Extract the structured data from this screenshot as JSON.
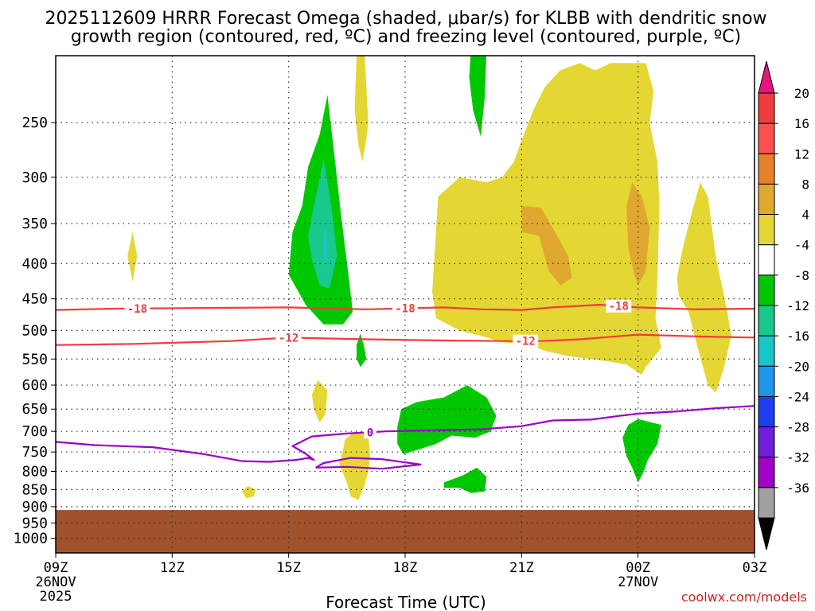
{
  "title_line1": "2025112609 HRRR Forecast Omega (shaded, μbar/s) for KLBB with dendritic snow",
  "title_line2": "growth region (contoured, red, ºC) and freezing level (contoured, purple, ºC)",
  "xlabel": "Forecast Time (UTC)",
  "credit": "coolwx.com/models",
  "chart_data": {
    "type": "contour",
    "x_axis": {
      "hours_range": [
        0,
        18
      ],
      "ticks": [
        {
          "hour": 0,
          "label": "09Z",
          "sub1": "26NOV",
          "sub2": "2025"
        },
        {
          "hour": 3,
          "label": "12Z"
        },
        {
          "hour": 6,
          "label": "15Z"
        },
        {
          "hour": 9,
          "label": "18Z"
        },
        {
          "hour": 12,
          "label": "21Z"
        },
        {
          "hour": 15,
          "label": "00Z",
          "sub1": "27NOV"
        },
        {
          "hour": 18,
          "label": "03Z"
        }
      ]
    },
    "y_axis": {
      "pressure_range_hpa": [
        1050,
        200
      ],
      "ticks": [
        250,
        300,
        350,
        400,
        450,
        500,
        550,
        600,
        650,
        700,
        750,
        800,
        850,
        900,
        950,
        1000
      ]
    },
    "surface": {
      "pressure_hpa": 910,
      "color": "#a0522d"
    },
    "omega_colorbar": {
      "labels": [
        "20",
        "16",
        "12",
        "8",
        "4",
        "-4",
        "-8",
        "-12",
        "-16",
        "-20",
        "-24",
        "-28",
        "-32",
        "-36"
      ],
      "colors": [
        "#f03c3c",
        "#ff5050",
        "#e8822a",
        "#e0a830",
        "#e5d733",
        "#ffffff",
        "#00c800",
        "#18c88c",
        "#18c8c8",
        "#1e96f0",
        "#1e3cf0",
        "#6e1edc",
        "#a000c8",
        "#a0a0a0"
      ],
      "top_arrow_color": "#e6147d",
      "bottom_arrow_color": "#000000"
    },
    "omega_regions": [
      {
        "name": "green-updraft-15-16z",
        "level": -4,
        "color": "#00c800",
        "points": [
          [
            6.0,
            415
          ],
          [
            6.1,
            360
          ],
          [
            6.35,
            330
          ],
          [
            6.5,
            290
          ],
          [
            6.8,
            260
          ],
          [
            7.0,
            228
          ],
          [
            7.15,
            270
          ],
          [
            7.35,
            340
          ],
          [
            7.55,
            420
          ],
          [
            7.65,
            470
          ],
          [
            7.4,
            490
          ],
          [
            6.9,
            490
          ],
          [
            6.45,
            460
          ]
        ]
      },
      {
        "name": "teal-core-16z",
        "level": -8,
        "color": "#18c88c",
        "points": [
          [
            6.5,
            365
          ],
          [
            6.7,
            320
          ],
          [
            6.9,
            282
          ],
          [
            7.1,
            330
          ],
          [
            7.25,
            390
          ],
          [
            7.05,
            435
          ],
          [
            6.8,
            430
          ],
          [
            6.6,
            395
          ]
        ]
      },
      {
        "name": "cyan-core-16z",
        "level": -12,
        "color": "#18c8c8",
        "points": [
          [
            6.88,
            375
          ],
          [
            6.95,
            355
          ],
          [
            7.0,
            385
          ],
          [
            6.94,
            408
          ]
        ]
      },
      {
        "name": "yellow-11z",
        "level": 4,
        "color": "#e5d733",
        "points": [
          [
            1.85,
            390
          ],
          [
            1.98,
            360
          ],
          [
            2.1,
            390
          ],
          [
            1.98,
            425
          ]
        ]
      },
      {
        "name": "yellow-upper-17z",
        "level": 4,
        "color": "#e5d733",
        "points": [
          [
            7.75,
            200
          ],
          [
            7.95,
            195
          ],
          [
            8.05,
            250
          ],
          [
            8.0,
            265
          ],
          [
            7.9,
            285
          ],
          [
            7.8,
            270
          ],
          [
            7.7,
            240
          ]
        ]
      },
      {
        "name": "green-upper-20z",
        "level": -4,
        "color": "#00c800",
        "points": [
          [
            10.7,
            195
          ],
          [
            11.1,
            195
          ],
          [
            11.05,
            230
          ],
          [
            10.95,
            262
          ],
          [
            10.75,
            240
          ],
          [
            10.65,
            215
          ]
        ]
      },
      {
        "name": "yellow-big-19-01z",
        "level": 4,
        "color": "#e5d733",
        "points": [
          [
            9.7,
            440
          ],
          [
            9.85,
            320
          ],
          [
            10.4,
            300
          ],
          [
            11.1,
            305
          ],
          [
            11.5,
            300
          ],
          [
            11.8,
            285
          ],
          [
            12.0,
            265
          ],
          [
            12.3,
            240
          ],
          [
            12.6,
            222
          ],
          [
            13.0,
            210
          ],
          [
            13.5,
            205
          ],
          [
            13.9,
            210
          ],
          [
            14.3,
            205
          ],
          [
            14.7,
            205
          ],
          [
            15.2,
            205
          ],
          [
            15.4,
            225
          ],
          [
            15.3,
            250
          ],
          [
            15.5,
            285
          ],
          [
            15.55,
            330
          ],
          [
            15.5,
            420
          ],
          [
            15.45,
            480
          ],
          [
            15.6,
            530
          ],
          [
            15.2,
            565
          ],
          [
            15.1,
            580
          ],
          [
            14.7,
            560
          ],
          [
            14.3,
            555
          ],
          [
            13.8,
            550
          ],
          [
            13.2,
            545
          ],
          [
            12.6,
            535
          ],
          [
            12.2,
            525
          ],
          [
            11.5,
            520
          ],
          [
            11.0,
            510
          ],
          [
            10.4,
            500
          ],
          [
            9.8,
            480
          ]
        ]
      },
      {
        "name": "orange-21-22z",
        "level": 8,
        "color": "#e0a830",
        "points": [
          [
            12.0,
            330
          ],
          [
            12.5,
            332
          ],
          [
            12.8,
            355
          ],
          [
            13.2,
            390
          ],
          [
            13.3,
            420
          ],
          [
            13.0,
            430
          ],
          [
            12.7,
            410
          ],
          [
            12.45,
            365
          ],
          [
            12.0,
            360
          ]
        ]
      },
      {
        "name": "orange-00z",
        "level": 8,
        "color": "#e0a830",
        "points": [
          [
            14.7,
            330
          ],
          [
            14.85,
            305
          ],
          [
            15.1,
            320
          ],
          [
            15.3,
            355
          ],
          [
            15.2,
            410
          ],
          [
            15.0,
            430
          ],
          [
            14.9,
            415
          ],
          [
            14.75,
            380
          ]
        ]
      },
      {
        "name": "yellow-02z",
        "level": 4,
        "color": "#e5d733",
        "points": [
          [
            16.0,
            420
          ],
          [
            16.15,
            380
          ],
          [
            16.4,
            335
          ],
          [
            16.6,
            305
          ],
          [
            16.8,
            320
          ],
          [
            17.0,
            390
          ],
          [
            17.3,
            470
          ],
          [
            17.4,
            510
          ],
          [
            17.2,
            570
          ],
          [
            17.0,
            615
          ],
          [
            16.8,
            600
          ],
          [
            16.5,
            520
          ],
          [
            16.3,
            470
          ],
          [
            16.05,
            445
          ]
        ]
      },
      {
        "name": "green-500mb-17z",
        "level": -4,
        "color": "#00c800",
        "points": [
          [
            7.75,
            525
          ],
          [
            7.85,
            505
          ],
          [
            7.95,
            530
          ],
          [
            8.0,
            550
          ],
          [
            7.85,
            565
          ],
          [
            7.75,
            550
          ]
        ]
      },
      {
        "name": "yellow-650mb-16z",
        "level": 4,
        "color": "#e5d733",
        "points": [
          [
            6.6,
            620
          ],
          [
            6.75,
            590
          ],
          [
            7.0,
            610
          ],
          [
            6.95,
            660
          ],
          [
            6.8,
            680
          ],
          [
            6.65,
            650
          ]
        ]
      },
      {
        "name": "green-big-18-20z",
        "level": -4,
        "color": "#00c800",
        "points": [
          [
            8.8,
            690
          ],
          [
            8.9,
            650
          ],
          [
            9.3,
            635
          ],
          [
            10.0,
            625
          ],
          [
            10.6,
            600
          ],
          [
            11.1,
            625
          ],
          [
            11.35,
            665
          ],
          [
            11.2,
            700
          ],
          [
            10.8,
            715
          ],
          [
            10.2,
            710
          ],
          [
            9.8,
            730
          ],
          [
            9.3,
            745
          ],
          [
            8.95,
            755
          ],
          [
            8.8,
            730
          ]
        ]
      },
      {
        "name": "yellow-700mb-17z",
        "level": 4,
        "color": "#e5d733",
        "points": [
          [
            7.4,
            745
          ],
          [
            7.45,
            720
          ],
          [
            7.7,
            700
          ],
          [
            8.05,
            705
          ],
          [
            8.1,
            760
          ],
          [
            8.05,
            800
          ],
          [
            7.95,
            840
          ],
          [
            7.8,
            880
          ],
          [
            7.6,
            870
          ],
          [
            7.5,
            830
          ],
          [
            7.3,
            780
          ]
        ]
      },
      {
        "name": "yellow-850mb-14z",
        "level": 4,
        "color": "#e5d733",
        "points": [
          [
            4.8,
            855
          ],
          [
            4.95,
            840
          ],
          [
            5.15,
            850
          ],
          [
            5.1,
            870
          ],
          [
            4.9,
            875
          ]
        ]
      },
      {
        "name": "green-820mb-20z",
        "level": -4,
        "color": "#00c800",
        "points": [
          [
            10.0,
            830
          ],
          [
            10.5,
            810
          ],
          [
            10.85,
            790
          ],
          [
            11.1,
            815
          ],
          [
            11.05,
            855
          ],
          [
            10.7,
            860
          ],
          [
            10.4,
            845
          ],
          [
            10.0,
            845
          ]
        ]
      },
      {
        "name": "green-700mb-00z",
        "level": -4,
        "color": "#00c800",
        "points": [
          [
            14.6,
            715
          ],
          [
            14.75,
            685
          ],
          [
            15.0,
            672
          ],
          [
            15.6,
            685
          ],
          [
            15.5,
            730
          ],
          [
            15.25,
            770
          ],
          [
            15.15,
            800
          ],
          [
            15.0,
            830
          ],
          [
            14.85,
            790
          ],
          [
            14.7,
            760
          ]
        ]
      }
    ],
    "contours": [
      {
        "name": "minus-18c-isotherm",
        "label": "-18",
        "color": "#f03c3c",
        "label_hours": [
          2.1,
          9.0,
          14.5
        ],
        "points": [
          [
            0,
            467
          ],
          [
            1.5,
            465
          ],
          [
            3.5,
            464
          ],
          [
            6.0,
            463
          ],
          [
            8.0,
            466
          ],
          [
            10.0,
            463
          ],
          [
            11.0,
            466
          ],
          [
            12.0,
            467
          ],
          [
            12.8,
            463
          ],
          [
            14.0,
            459
          ],
          [
            15.0,
            463
          ],
          [
            16.5,
            466
          ],
          [
            18.0,
            465
          ]
        ]
      },
      {
        "name": "minus-12c-isotherm",
        "label": "-12",
        "color": "#f03c3c",
        "label_hours": [
          6.0,
          12.1
        ],
        "points": [
          [
            0,
            525
          ],
          [
            2.0,
            523
          ],
          [
            4.5,
            518
          ],
          [
            6.0,
            512
          ],
          [
            8.0,
            515
          ],
          [
            10.0,
            517
          ],
          [
            11.5,
            518
          ],
          [
            12.5,
            518
          ],
          [
            13.5,
            515
          ],
          [
            15.0,
            507
          ],
          [
            16.5,
            510
          ],
          [
            18.0,
            512
          ]
        ]
      },
      {
        "name": "zero-c-freezing-level",
        "label": "0",
        "color": "#9a00c8",
        "label_hours": [
          8.1
        ],
        "points": [
          [
            0,
            725
          ],
          [
            1.0,
            733
          ],
          [
            2.5,
            738
          ],
          [
            3.8,
            755
          ],
          [
            4.8,
            773
          ],
          [
            5.5,
            775
          ],
          [
            6.2,
            770
          ],
          [
            6.5,
            765
          ],
          [
            6.65,
            770
          ],
          [
            6.45,
            755
          ],
          [
            6.1,
            735
          ],
          [
            6.6,
            712
          ],
          [
            7.5,
            705
          ],
          [
            8.5,
            700
          ],
          [
            10.0,
            697
          ],
          [
            11.0,
            695
          ],
          [
            12.0,
            688
          ],
          [
            12.8,
            675
          ],
          [
            13.8,
            673
          ],
          [
            14.5,
            665
          ],
          [
            15.0,
            660
          ],
          [
            16.0,
            655
          ],
          [
            17.0,
            648
          ],
          [
            18.0,
            643
          ]
        ]
      },
      {
        "name": "zero-c-freezing-loop",
        "label": "",
        "color": "#9a00c8",
        "label_hours": [],
        "points": [
          [
            6.7,
            790
          ],
          [
            7.5,
            788
          ],
          [
            8.4,
            793
          ],
          [
            9.4,
            782
          ],
          [
            8.4,
            768
          ],
          [
            7.6,
            765
          ],
          [
            6.9,
            778
          ],
          [
            6.7,
            790
          ]
        ]
      }
    ]
  }
}
